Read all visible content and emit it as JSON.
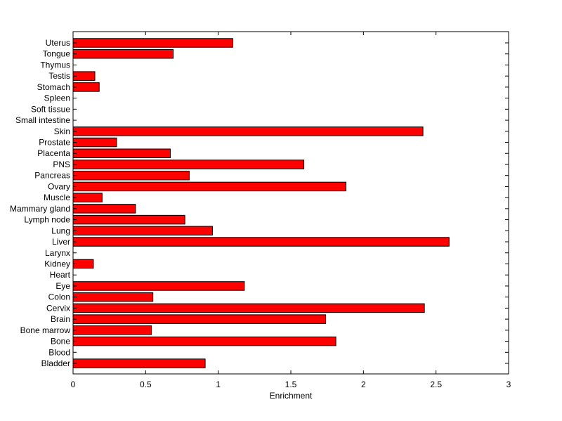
{
  "chart_data": {
    "type": "bar",
    "orientation": "horizontal",
    "categories": [
      "Bladder",
      "Blood",
      "Bone",
      "Bone marrow",
      "Brain",
      "Cervix",
      "Colon",
      "Eye",
      "Heart",
      "Kidney",
      "Larynx",
      "Liver",
      "Lung",
      "Lymph node",
      "Mammary gland",
      "Muscle",
      "Ovary",
      "Pancreas",
      "PNS",
      "Placenta",
      "Prostate",
      "Skin",
      "Small intestine",
      "Soft tissue",
      "Spleen",
      "Stomach",
      "Testis",
      "Thymus",
      "Tongue",
      "Uterus"
    ],
    "values": [
      0.91,
      0,
      1.81,
      0.54,
      1.74,
      2.42,
      0.55,
      1.18,
      0,
      0.14,
      0,
      2.59,
      0.96,
      0.77,
      0.43,
      0.2,
      1.88,
      0.8,
      1.59,
      0.67,
      0.3,
      2.41,
      0,
      0,
      0,
      0.18,
      0.15,
      0,
      0.69,
      1.1
    ],
    "xlabel": "Enrichment",
    "ylabel": "",
    "title": "",
    "xlim": [
      0,
      3
    ],
    "xticks": [
      "0",
      "0.5",
      "1",
      "1.5",
      "2",
      "2.5",
      "3"
    ],
    "bar_color": "#ff0000",
    "grid": false
  }
}
